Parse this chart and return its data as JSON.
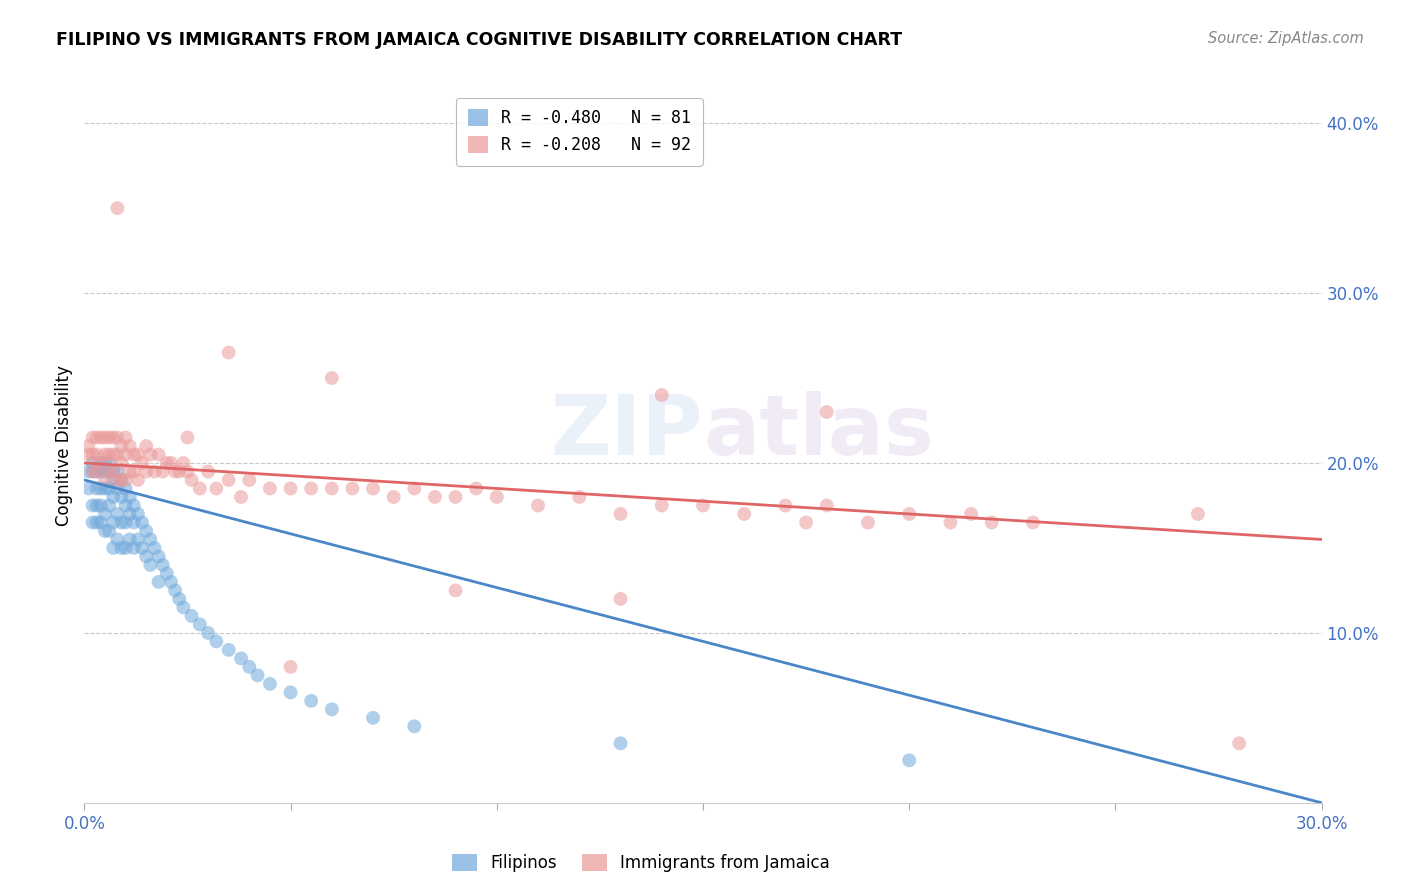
{
  "title": "FILIPINO VS IMMIGRANTS FROM JAMAICA COGNITIVE DISABILITY CORRELATION CHART",
  "source": "Source: ZipAtlas.com",
  "ylabel": "Cognitive Disability",
  "watermark": "ZIPatlas",
  "xlim": [
    0.0,
    0.3
  ],
  "ylim": [
    0.0,
    0.42
  ],
  "filipino_color": "#6fa8dc",
  "jamaica_color": "#ea9999",
  "line_filipino_color": "#4a86c8",
  "line_jamaica_color": "#e06666",
  "fil_line_x0": 0.0,
  "fil_line_y0": 0.19,
  "fil_line_x1": 0.3,
  "fil_line_y1": 0.0,
  "jam_line_x0": 0.0,
  "jam_line_y0": 0.2,
  "jam_line_x1": 0.3,
  "jam_line_y1": 0.155,
  "legend1_label": "R = -0.480   N = 81",
  "legend2_label": "R = -0.208   N = 92",
  "filipino_x": [
    0.001,
    0.001,
    0.002,
    0.002,
    0.002,
    0.002,
    0.003,
    0.003,
    0.003,
    0.003,
    0.004,
    0.004,
    0.004,
    0.004,
    0.004,
    0.005,
    0.005,
    0.005,
    0.005,
    0.005,
    0.006,
    0.006,
    0.006,
    0.006,
    0.006,
    0.007,
    0.007,
    0.007,
    0.007,
    0.007,
    0.008,
    0.008,
    0.008,
    0.008,
    0.009,
    0.009,
    0.009,
    0.009,
    0.01,
    0.01,
    0.01,
    0.01,
    0.011,
    0.011,
    0.011,
    0.012,
    0.012,
    0.012,
    0.013,
    0.013,
    0.014,
    0.014,
    0.015,
    0.015,
    0.016,
    0.016,
    0.017,
    0.018,
    0.018,
    0.019,
    0.02,
    0.021,
    0.022,
    0.023,
    0.024,
    0.026,
    0.028,
    0.03,
    0.032,
    0.035,
    0.038,
    0.04,
    0.042,
    0.045,
    0.05,
    0.055,
    0.06,
    0.07,
    0.08,
    0.13,
    0.2
  ],
  "filipino_y": [
    0.195,
    0.185,
    0.2,
    0.195,
    0.175,
    0.165,
    0.195,
    0.185,
    0.175,
    0.165,
    0.2,
    0.195,
    0.185,
    0.175,
    0.165,
    0.2,
    0.195,
    0.185,
    0.17,
    0.16,
    0.2,
    0.195,
    0.185,
    0.175,
    0.16,
    0.195,
    0.19,
    0.18,
    0.165,
    0.15,
    0.195,
    0.185,
    0.17,
    0.155,
    0.19,
    0.18,
    0.165,
    0.15,
    0.185,
    0.175,
    0.165,
    0.15,
    0.18,
    0.17,
    0.155,
    0.175,
    0.165,
    0.15,
    0.17,
    0.155,
    0.165,
    0.15,
    0.16,
    0.145,
    0.155,
    0.14,
    0.15,
    0.145,
    0.13,
    0.14,
    0.135,
    0.13,
    0.125,
    0.12,
    0.115,
    0.11,
    0.105,
    0.1,
    0.095,
    0.09,
    0.085,
    0.08,
    0.075,
    0.07,
    0.065,
    0.06,
    0.055,
    0.05,
    0.045,
    0.035,
    0.025
  ],
  "jamaica_x": [
    0.001,
    0.001,
    0.002,
    0.002,
    0.002,
    0.003,
    0.003,
    0.003,
    0.004,
    0.004,
    0.005,
    0.005,
    0.005,
    0.006,
    0.006,
    0.006,
    0.007,
    0.007,
    0.007,
    0.008,
    0.008,
    0.008,
    0.009,
    0.009,
    0.009,
    0.01,
    0.01,
    0.01,
    0.011,
    0.011,
    0.012,
    0.012,
    0.013,
    0.013,
    0.014,
    0.015,
    0.015,
    0.016,
    0.017,
    0.018,
    0.019,
    0.02,
    0.021,
    0.022,
    0.023,
    0.024,
    0.025,
    0.026,
    0.028,
    0.03,
    0.032,
    0.035,
    0.038,
    0.04,
    0.045,
    0.05,
    0.055,
    0.06,
    0.065,
    0.07,
    0.075,
    0.08,
    0.085,
    0.09,
    0.095,
    0.1,
    0.11,
    0.12,
    0.13,
    0.14,
    0.15,
    0.16,
    0.17,
    0.175,
    0.18,
    0.19,
    0.2,
    0.21,
    0.22,
    0.23,
    0.008,
    0.035,
    0.06,
    0.14,
    0.18,
    0.215,
    0.025,
    0.05,
    0.09,
    0.13,
    0.27,
    0.28
  ],
  "jamaica_y": [
    0.21,
    0.205,
    0.215,
    0.205,
    0.195,
    0.215,
    0.205,
    0.195,
    0.215,
    0.2,
    0.215,
    0.205,
    0.19,
    0.215,
    0.205,
    0.195,
    0.215,
    0.205,
    0.195,
    0.215,
    0.205,
    0.19,
    0.21,
    0.2,
    0.19,
    0.215,
    0.205,
    0.19,
    0.21,
    0.195,
    0.205,
    0.195,
    0.205,
    0.19,
    0.2,
    0.21,
    0.195,
    0.205,
    0.195,
    0.205,
    0.195,
    0.2,
    0.2,
    0.195,
    0.195,
    0.2,
    0.195,
    0.19,
    0.185,
    0.195,
    0.185,
    0.19,
    0.18,
    0.19,
    0.185,
    0.185,
    0.185,
    0.185,
    0.185,
    0.185,
    0.18,
    0.185,
    0.18,
    0.18,
    0.185,
    0.18,
    0.175,
    0.18,
    0.17,
    0.175,
    0.175,
    0.17,
    0.175,
    0.165,
    0.175,
    0.165,
    0.17,
    0.165,
    0.165,
    0.165,
    0.35,
    0.265,
    0.25,
    0.24,
    0.23,
    0.17,
    0.215,
    0.08,
    0.125,
    0.12,
    0.17,
    0.035
  ]
}
